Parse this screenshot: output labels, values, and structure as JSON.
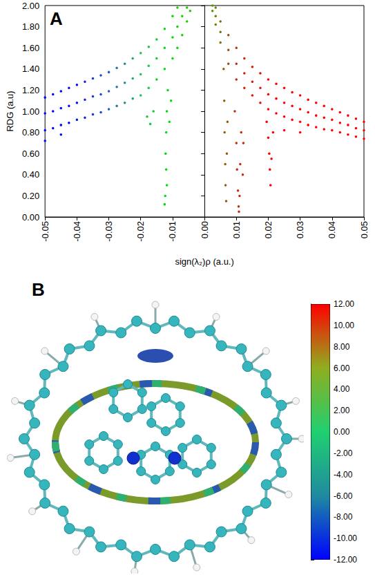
{
  "chart_data": [
    {
      "type": "scatter",
      "panel": "A",
      "xlabel": "sign(λ₂)ρ (a.u.)",
      "ylabel": "RDG (a.u)",
      "xlim": [
        -0.05,
        0.05
      ],
      "ylim": [
        0,
        2
      ],
      "xticks": [
        -0.05,
        -0.04,
        -0.03,
        -0.02,
        -0.01,
        {
          "value": 0,
          "label": "0.00"
        },
        0.01,
        0.02,
        0.03,
        0.04,
        0.05
      ],
      "yticks": [
        {
          "value": 0,
          "label": "0.00"
        },
        {
          "value": 0.2,
          "label": "0.20"
        },
        {
          "value": 0.4,
          "label": "0.40"
        },
        {
          "value": 0.6,
          "label": "0.60"
        },
        {
          "value": 0.8,
          "label": "0.80"
        },
        {
          "value": 1,
          "label": "1.00"
        },
        {
          "value": 1.2,
          "label": "1.20"
        },
        {
          "value": 1.4,
          "label": "1.40"
        },
        {
          "value": 1.6,
          "label": "1.60"
        },
        {
          "value": 1.8,
          "label": "1.80"
        },
        {
          "value": 2,
          "label": "2.00"
        }
      ],
      "grid": false,
      "x": [
        -0.05,
        -0.05,
        -0.05,
        -0.0475,
        -0.0475,
        -0.0475,
        -0.045,
        -0.045,
        -0.045,
        -0.0425,
        -0.0425,
        -0.0425,
        -0.04,
        -0.04,
        -0.04,
        -0.0375,
        -0.0375,
        -0.0375,
        -0.035,
        -0.035,
        -0.035,
        -0.0325,
        -0.0325,
        -0.0325,
        -0.03,
        -0.03,
        -0.03,
        -0.0275,
        -0.0275,
        -0.0275,
        -0.025,
        -0.025,
        -0.025,
        -0.0225,
        -0.0225,
        -0.0225,
        -0.02,
        -0.02,
        -0.02,
        -0.0175,
        -0.0175,
        -0.0175,
        -0.015,
        -0.015,
        -0.015,
        -0.0125,
        -0.0125,
        -0.0125,
        -0.01,
        -0.01,
        -0.01,
        -0.0085,
        -0.0085,
        -0.0085,
        -0.007,
        -0.007,
        -0.0055,
        -0.0055,
        -0.0045,
        -0.0115,
        -0.0118,
        -0.012,
        -0.0122,
        -0.012,
        -0.0118,
        -0.0123,
        -0.0125,
        -0.011,
        -0.0105,
        -0.018,
        -0.017,
        -0.016,
        -0.05,
        -0.045,
        0.0025,
        0.0025,
        0.0035,
        0.0035,
        0.0035,
        0.005,
        0.005,
        0.005,
        0.0075,
        0.0075,
        0.0075,
        0.01,
        0.01,
        0.01,
        0.0125,
        0.0125,
        0.0125,
        0.015,
        0.015,
        0.015,
        0.0175,
        0.0175,
        0.0175,
        0.02,
        0.02,
        0.02,
        0.0225,
        0.0225,
        0.0225,
        0.025,
        0.025,
        0.025,
        0.0275,
        0.0275,
        0.0275,
        0.03,
        0.03,
        0.03,
        0.0325,
        0.0325,
        0.0325,
        0.035,
        0.035,
        0.035,
        0.0375,
        0.0375,
        0.0375,
        0.04,
        0.04,
        0.04,
        0.0425,
        0.0425,
        0.0425,
        0.045,
        0.045,
        0.045,
        0.0475,
        0.0475,
        0.0475,
        0.05,
        0.05,
        0.05,
        0.006,
        0.0062,
        0.0063,
        0.0065,
        0.0066,
        0.0068,
        0.007,
        0.0072,
        0.0095,
        0.01,
        0.0102,
        0.0105,
        0.0107,
        0.0108,
        0.011,
        0.0112,
        0.0115,
        0.012,
        0.0122,
        0.0195,
        0.02,
        0.0203,
        0.0205,
        0.0207,
        0.021,
        0.0215,
        0.025,
        0.03
      ],
      "values": [
        1.13,
        0.98,
        0.82,
        1.16,
        1.0,
        0.84,
        1.19,
        1.03,
        0.87,
        1.22,
        1.05,
        0.89,
        1.25,
        1.08,
        0.92,
        1.28,
        1.11,
        0.94,
        1.31,
        1.14,
        0.97,
        1.34,
        1.16,
        0.99,
        1.37,
        1.19,
        1.02,
        1.41,
        1.23,
        1.05,
        1.45,
        1.27,
        1.08,
        1.5,
        1.31,
        1.12,
        1.55,
        1.35,
        1.15,
        1.61,
        1.43,
        1.22,
        1.68,
        1.5,
        1.3,
        1.78,
        1.6,
        1.4,
        1.9,
        1.7,
        1.5,
        1.98,
        1.8,
        1.6,
        1.9,
        1.72,
        1.98,
        1.85,
        1.95,
        1.2,
        1.0,
        0.8,
        0.6,
        0.45,
        0.3,
        0.2,
        0.12,
        0.9,
        1.1,
        0.95,
        0.88,
        1.0,
        0.72,
        0.78,
        2.0,
        1.95,
        1.98,
        1.9,
        1.82,
        1.85,
        1.75,
        1.65,
        1.72,
        1.58,
        1.45,
        1.6,
        1.45,
        1.3,
        1.5,
        1.36,
        1.22,
        1.42,
        1.28,
        1.15,
        1.36,
        1.22,
        1.08,
        1.3,
        1.16,
        1.02,
        1.26,
        1.12,
        0.98,
        1.22,
        1.08,
        0.95,
        1.18,
        1.05,
        0.92,
        1.15,
        1.02,
        0.9,
        1.11,
        0.99,
        0.87,
        1.08,
        0.96,
        0.85,
        1.05,
        0.94,
        0.83,
        1.02,
        0.92,
        0.82,
        0.99,
        0.89,
        0.8,
        0.96,
        0.87,
        0.78,
        0.93,
        0.84,
        0.76,
        0.9,
        0.82,
        0.74,
        1.4,
        1.1,
        0.8,
        0.5,
        0.3,
        0.15,
        0.6,
        0.9,
        1.0,
        0.7,
        0.45,
        0.25,
        0.1,
        0.05,
        0.2,
        0.5,
        0.8,
        0.4,
        0.7,
        0.9,
        0.75,
        0.6,
        0.45,
        0.3,
        0.55,
        0.8,
        0.82,
        0.8
      ]
    },
    {
      "type": "image",
      "panel": "B",
      "colorbar": {
        "range": [
          -12,
          12
        ],
        "ticks": [
          {
            "value": 12,
            "label": "12.00"
          },
          {
            "value": 10,
            "label": "10.00"
          },
          {
            "value": 8,
            "label": "8.00"
          },
          {
            "value": 6,
            "label": "6.00"
          },
          {
            "value": 4,
            "label": "4.00"
          },
          {
            "value": 2,
            "label": "2.00"
          },
          {
            "value": 0,
            "label": "0.00"
          },
          {
            "value": -2,
            "label": "-2.00"
          },
          {
            "value": -4,
            "label": "-4.00"
          },
          {
            "value": -6,
            "label": "-6.00"
          },
          {
            "value": -8,
            "label": "-8.00"
          },
          {
            "value": -10,
            "label": "-10.00"
          },
          {
            "value": -12,
            "label": "-12.00"
          }
        ]
      }
    }
  ]
}
